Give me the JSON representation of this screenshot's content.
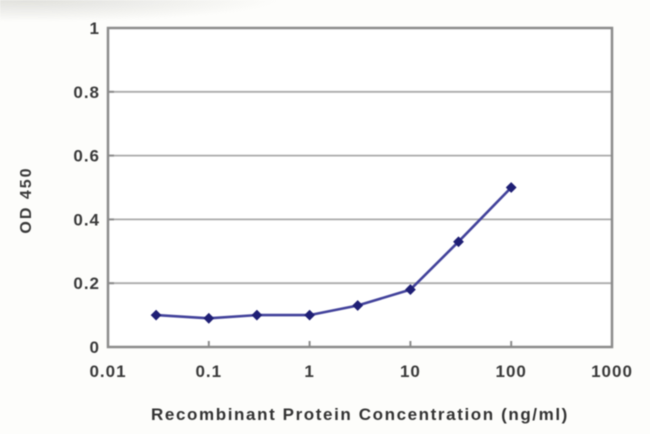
{
  "figure": {
    "background_color": "#fdfdfb",
    "plot_background_color": "#ffffff"
  },
  "chart_data": {
    "type": "line",
    "x_scale": "log",
    "x": [
      0.03,
      0.1,
      0.3,
      1,
      3,
      10,
      30,
      100
    ],
    "series": [
      {
        "name": "OD 450",
        "values": [
          0.1,
          0.09,
          0.1,
          0.1,
          0.13,
          0.18,
          0.33,
          0.5
        ]
      }
    ],
    "title": "",
    "xlabel": "Recombinant Protein Concentration (ng/ml)",
    "ylabel": "OD 450",
    "xlim": [
      0.01,
      1000
    ],
    "ylim": [
      0,
      1
    ],
    "x_tick_labels": [
      "0.01",
      "0.1",
      "1",
      "10",
      "100",
      "1000"
    ],
    "x_tick_values": [
      0.01,
      0.1,
      1,
      10,
      100,
      1000
    ],
    "y_tick_labels": [
      "0",
      "0.2",
      "0.4",
      "0.6",
      "0.8",
      "1"
    ],
    "y_tick_values": [
      0,
      0.2,
      0.4,
      0.6,
      0.8,
      1
    ],
    "grid": "horizontal",
    "legend_position": "none",
    "marker": "diamond",
    "colors": {
      "line": "#42429b",
      "marker": "#1f1f75",
      "frame": "#8b8b8b",
      "gridline": "#ababab",
      "text": "#3a3a3a"
    }
  }
}
